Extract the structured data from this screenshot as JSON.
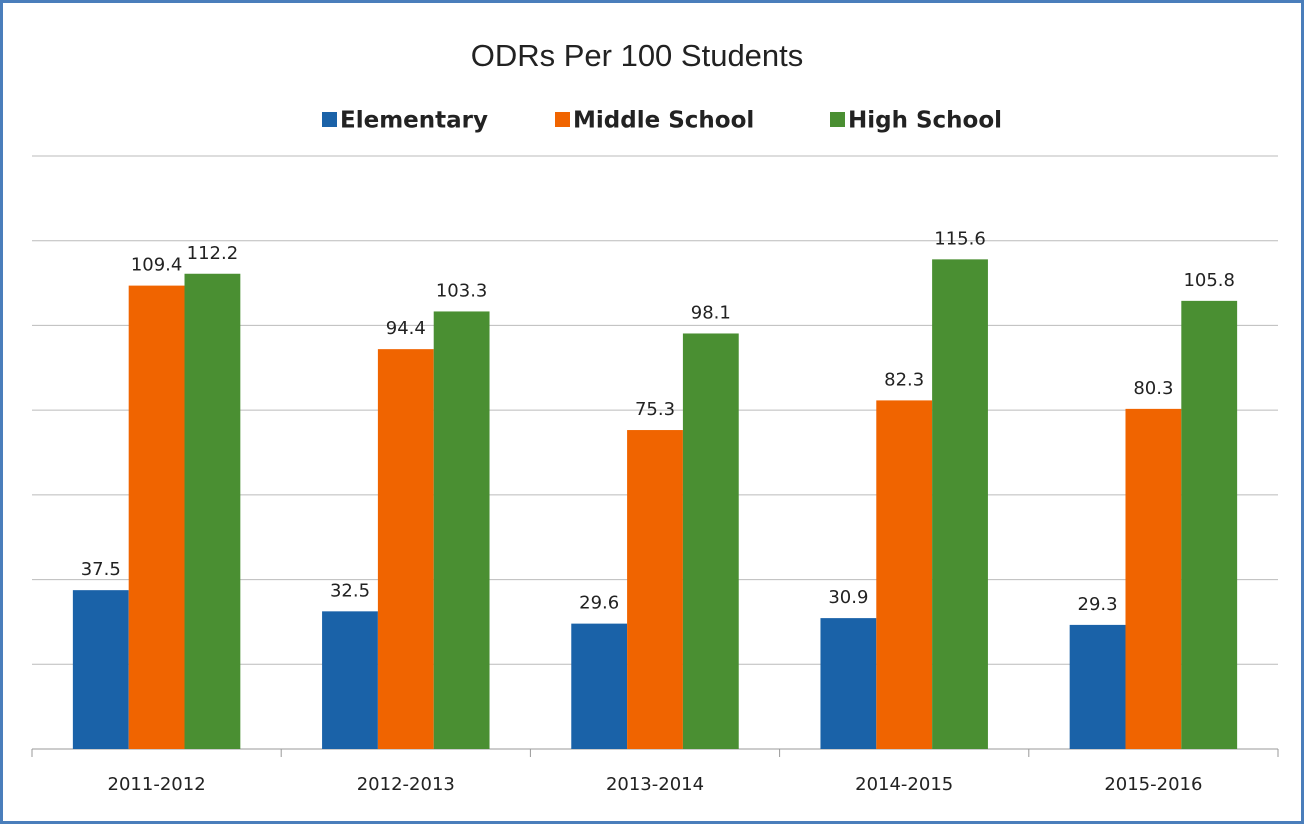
{
  "chart_data": {
    "type": "bar",
    "title": "ODRs Per 100 Students",
    "categories": [
      "2011-2012",
      "2012-2013",
      "2013-2014",
      "2014-2015",
      "2015-2016"
    ],
    "series": [
      {
        "name": "Elementary",
        "color": "#1a62a8",
        "values": [
          37.5,
          32.5,
          29.6,
          30.9,
          29.3
        ]
      },
      {
        "name": "Middle School",
        "color": "#f06400",
        "values": [
          109.4,
          94.4,
          75.3,
          82.3,
          80.3
        ]
      },
      {
        "name": "High School",
        "color": "#4a8f32",
        "values": [
          112.2,
          103.3,
          98.1,
          115.6,
          105.8
        ]
      }
    ],
    "ylim": [
      0,
      140
    ],
    "yticks": [
      0,
      20,
      40,
      60,
      80,
      100,
      120,
      140
    ],
    "grid": true,
    "legend": "top"
  }
}
